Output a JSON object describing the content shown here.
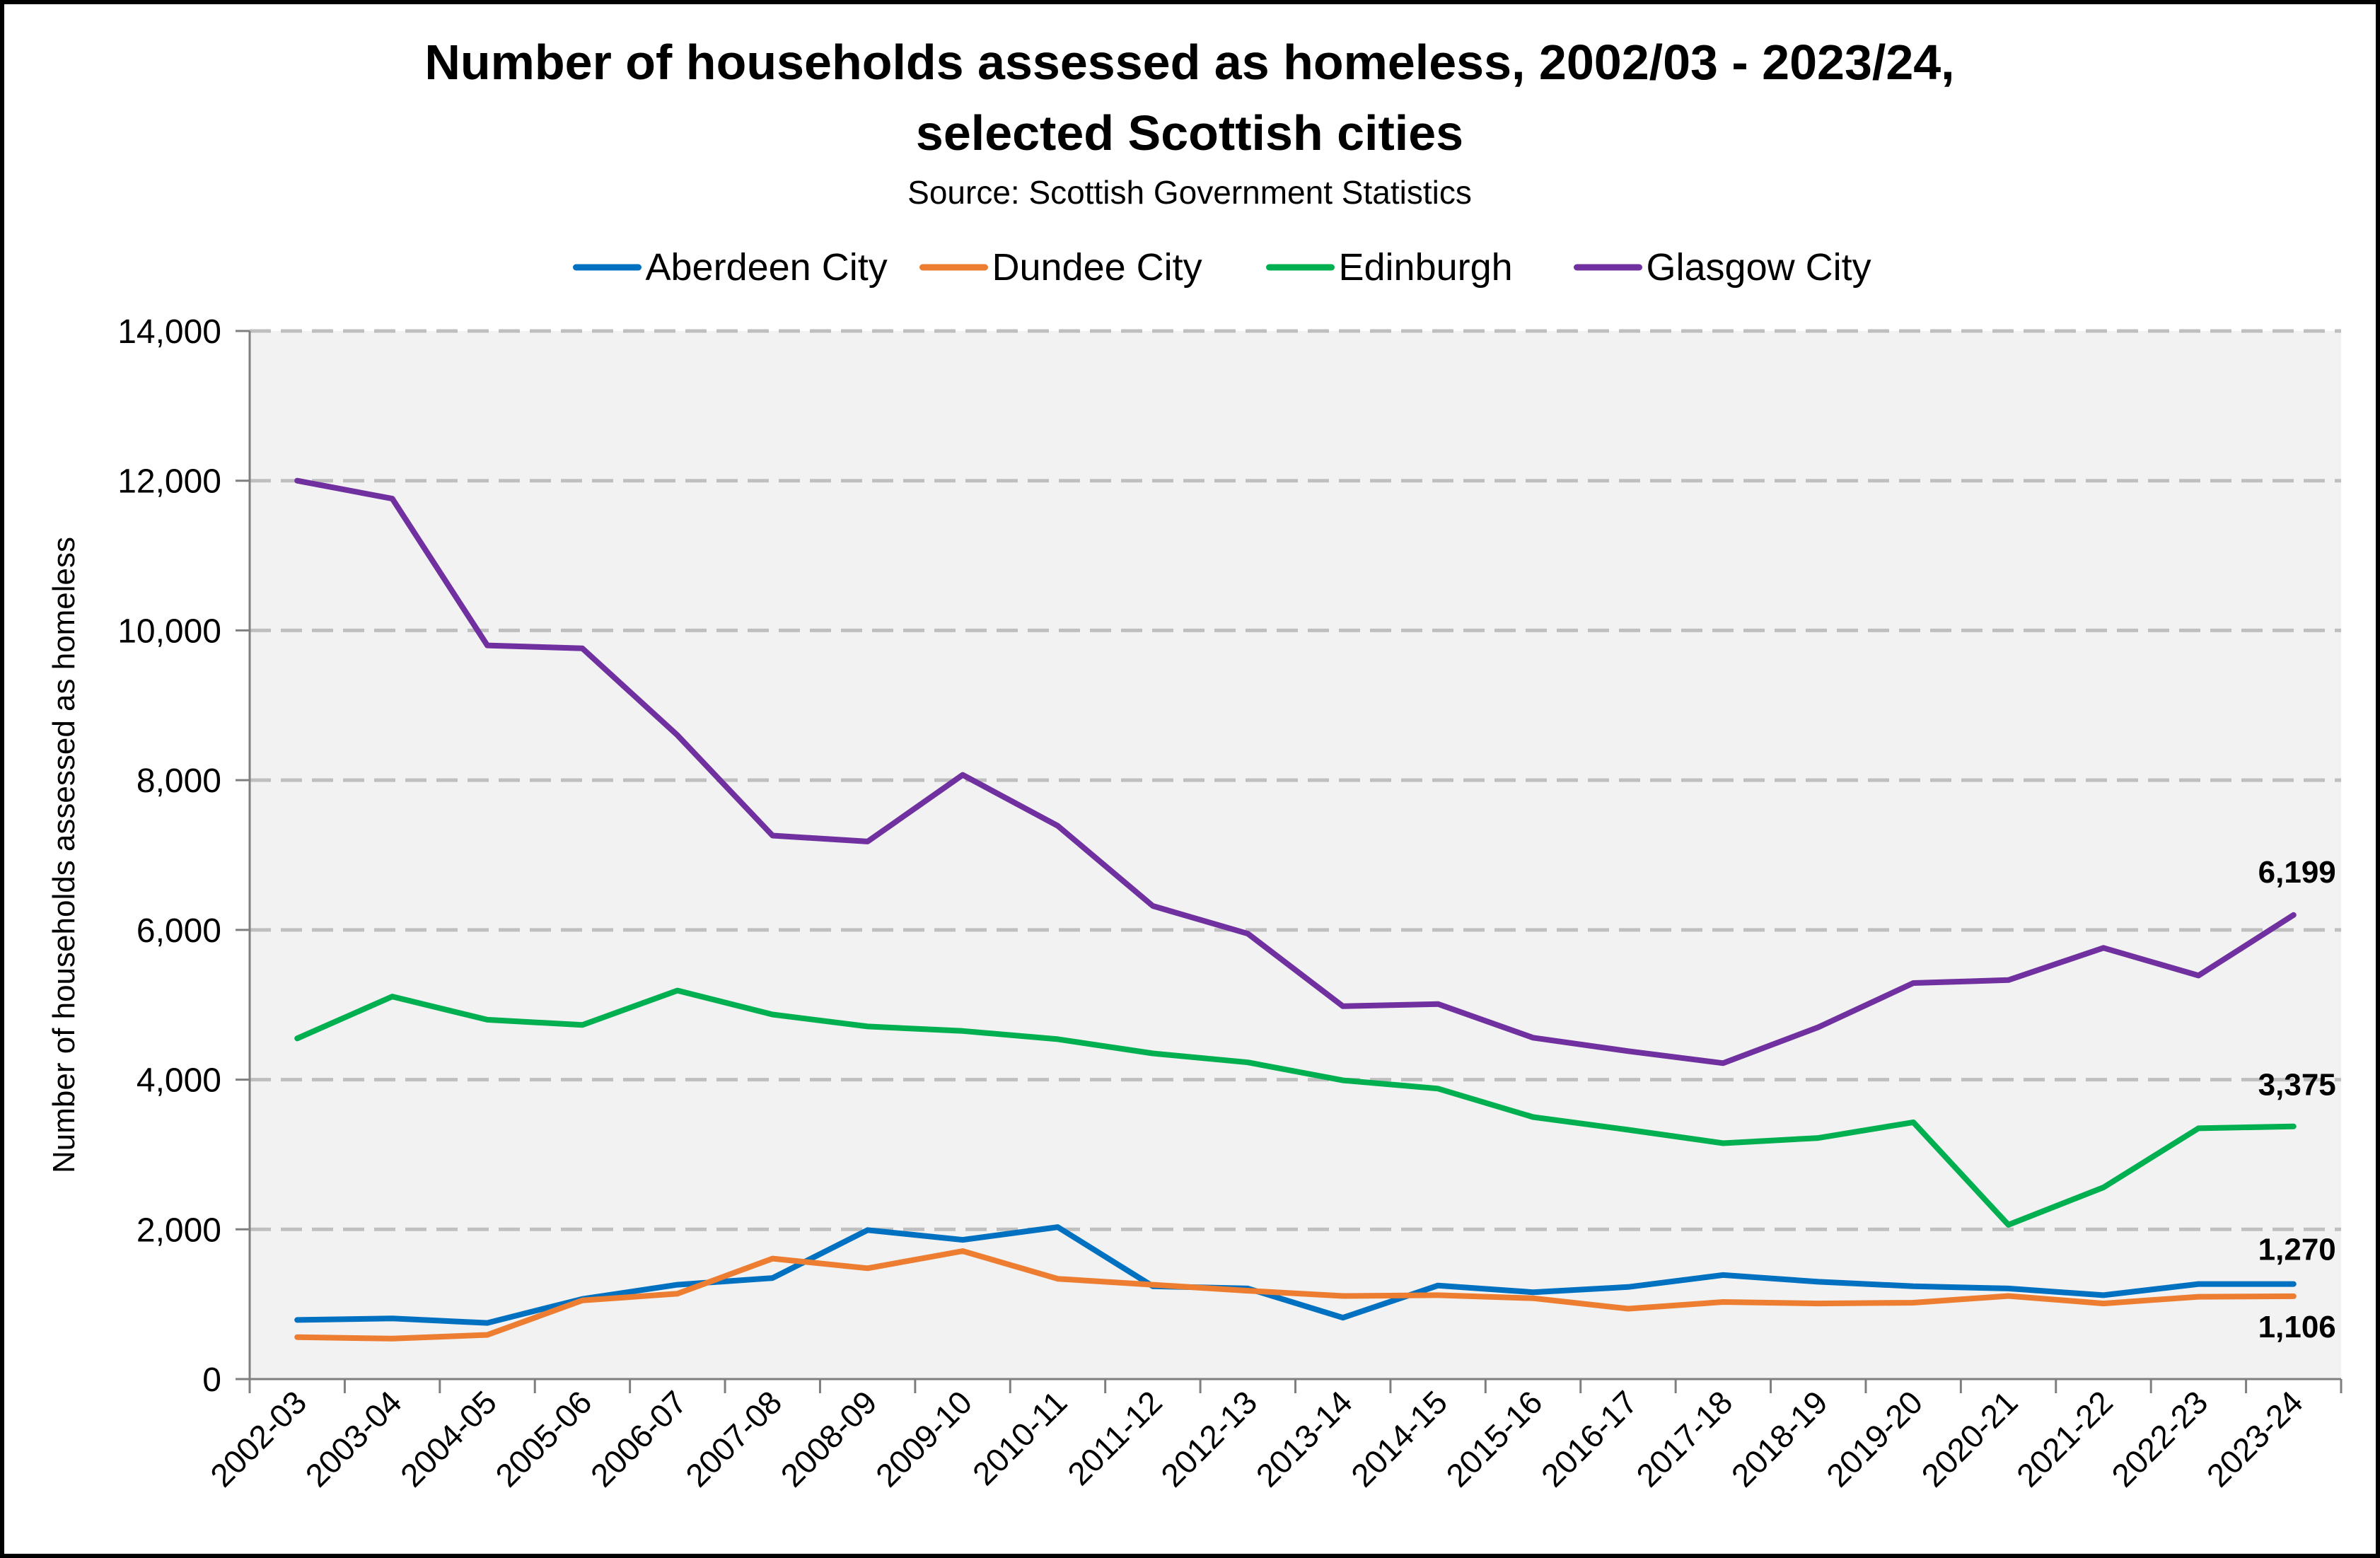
{
  "chart_data": {
    "type": "line",
    "title": "Number of households assessed as homeless, 2002/03 - 2023/24,",
    "title_line2": "selected Scottish cities",
    "subtitle": "Source: Scottish Government Statistics",
    "xlabel": "",
    "ylabel": "Number of households assessed as homeless",
    "ylim": [
      0,
      14000
    ],
    "yticks": [
      0,
      2000,
      4000,
      6000,
      8000,
      10000,
      12000,
      14000
    ],
    "ytick_labels": [
      "0",
      "2,000",
      "4,000",
      "6,000",
      "8,000",
      "10,000",
      "12,000",
      "14,000"
    ],
    "grid": true,
    "legend_position": "top",
    "categories": [
      "2002-03",
      "2003-04",
      "2004-05",
      "2005-06",
      "2006-07",
      "2007-08",
      "2008-09",
      "2009-10",
      "2010-11",
      "2011-12",
      "2012-13",
      "2013-14",
      "2014-15",
      "2015-16",
      "2016-17",
      "2017-18",
      "2018-19",
      "2019-20",
      "2020-21",
      "2021-22",
      "2022-23",
      "2023-24"
    ],
    "series": [
      {
        "name": "Aberdeen City",
        "color": "#0070C0",
        "values": [
          790,
          810,
          750,
          1070,
          1260,
          1350,
          1990,
          1860,
          2030,
          1240,
          1210,
          820,
          1250,
          1160,
          1230,
          1390,
          1300,
          1240,
          1210,
          1120,
          1270,
          1270
        ],
        "end_label": "1,270"
      },
      {
        "name": "Dundee City",
        "color": "#ED7D31",
        "values": [
          560,
          540,
          590,
          1050,
          1140,
          1610,
          1480,
          1710,
          1340,
          1260,
          1180,
          1110,
          1120,
          1080,
          940,
          1030,
          1010,
          1020,
          1110,
          1010,
          1100,
          1106
        ],
        "end_label": "1,106"
      },
      {
        "name": "Edinburgh",
        "color": "#00B050",
        "values": [
          4550,
          5110,
          4800,
          4730,
          5190,
          4870,
          4710,
          4650,
          4540,
          4350,
          4230,
          3990,
          3880,
          3500,
          3330,
          3150,
          3220,
          3430,
          2060,
          2560,
          3350,
          3375
        ],
        "end_label": "3,375"
      },
      {
        "name": "Glasgow City",
        "color": "#7030A0",
        "values": [
          12000,
          11760,
          9800,
          9760,
          8600,
          7260,
          7180,
          8070,
          7390,
          6320,
          5950,
          4980,
          5010,
          4560,
          4380,
          4220,
          4700,
          5290,
          5330,
          5760,
          5390,
          6199
        ],
        "end_label": "6,199"
      }
    ]
  }
}
